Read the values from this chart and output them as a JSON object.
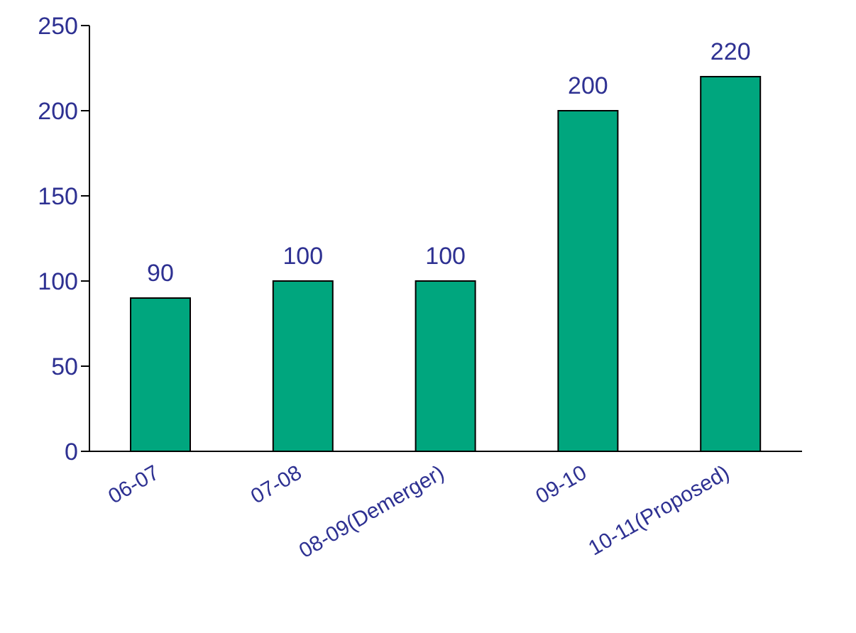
{
  "chart_data": {
    "type": "bar",
    "categories": [
      "06-07",
      "07-08",
      "08-09(Demerger)",
      "09-10",
      "10-11(Proposed)"
    ],
    "values": [
      90,
      100,
      100,
      200,
      220
    ],
    "color": "#00a67e",
    "ylim": [
      0,
      250
    ],
    "yticks": [
      0,
      50,
      100,
      150,
      200,
      250
    ],
    "grid": false,
    "data_labels": true
  }
}
